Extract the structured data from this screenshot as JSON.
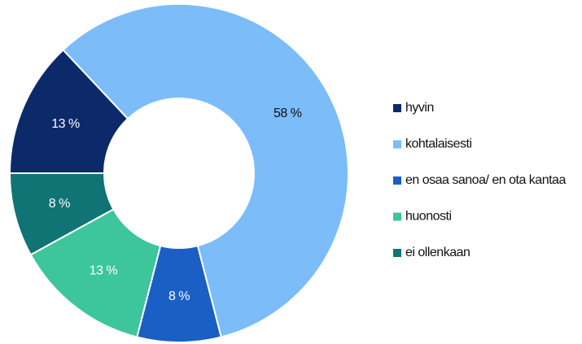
{
  "chart_data": {
    "type": "donut",
    "categories": [
      "hyvin",
      "kohtalaisesti",
      "en osaa sanoa/ en ota kantaa",
      "huonosti",
      "ei ollenkaan"
    ],
    "values": [
      13,
      58,
      8,
      13,
      8
    ],
    "value_labels": [
      "13 %",
      "58 %",
      "8 %",
      "13 %",
      "8 %"
    ],
    "colors": [
      "#0c2a6a",
      "#7bbcf9",
      "#1a5fc4",
      "#3dc59b",
      "#0f7473"
    ],
    "legend": "right"
  }
}
